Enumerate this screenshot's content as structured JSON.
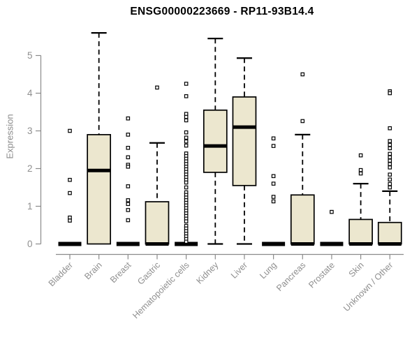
{
  "header": {
    "title": "ENSG00000223669 - RP11-93B14.4"
  },
  "chart_data": {
    "type": "boxplot",
    "title": "ENSG00000223669 - RP11-93B14.4",
    "xlabel": "",
    "ylabel": "Expression",
    "ylim": [
      0,
      5.7
    ],
    "yticks": [
      0,
      1,
      2,
      3,
      4,
      5
    ],
    "grid": false,
    "legend": "none",
    "categories": [
      "Bladder",
      "Brain",
      "Breast",
      "Gastric",
      "Hematopoietic cells",
      "Kidney",
      "Liver",
      "Lung",
      "Pancreas",
      "Prostate",
      "Skin",
      "Unknown / Other"
    ],
    "series": [
      {
        "name": "Bladder",
        "q1": 0,
        "median": 0,
        "q3": 0,
        "whisker_low": 0,
        "whisker_high": 0,
        "outliers": [
          3.0,
          1.7,
          1.35,
          0.7,
          0.62
        ]
      },
      {
        "name": "Brain",
        "q1": 0,
        "median": 1.95,
        "q3": 2.9,
        "whisker_low": 0,
        "whisker_high": 5.6,
        "outliers": []
      },
      {
        "name": "Breast",
        "q1": 0,
        "median": 0,
        "q3": 0,
        "whisker_low": 0,
        "whisker_high": 0,
        "outliers": [
          3.33,
          2.9,
          2.55,
          2.3,
          2.1,
          2.05,
          1.53,
          1.16,
          1.06,
          0.9,
          0.63
        ]
      },
      {
        "name": "Gastric",
        "q1": 0,
        "median": 0,
        "q3": 1.12,
        "whisker_low": 0,
        "whisker_high": 2.68,
        "outliers": [
          4.15
        ]
      },
      {
        "name": "Hematopoietic cells",
        "q1": 0,
        "median": 0,
        "q3": 0,
        "whisker_low": 0,
        "whisker_high": 0,
        "outliers": [
          4.25,
          3.92,
          3.45,
          3.37,
          3.28,
          2.96,
          2.82,
          2.72,
          2.61,
          2.4,
          2.33,
          2.26,
          2.19,
          2.12,
          2.05,
          1.98,
          1.91,
          1.84,
          1.77,
          1.7,
          1.63,
          1.5,
          1.37,
          1.3,
          1.23,
          1.16,
          1.09,
          1.02,
          0.95,
          0.88,
          0.81,
          0.74,
          0.67,
          0.6,
          0.48,
          0.41,
          0.34,
          0.27,
          0.2,
          0.13,
          0.06
        ]
      },
      {
        "name": "Kidney",
        "q1": 1.9,
        "median": 2.6,
        "q3": 3.55,
        "whisker_low": 0,
        "whisker_high": 5.45,
        "outliers": []
      },
      {
        "name": "Liver",
        "q1": 1.55,
        "median": 3.1,
        "q3": 3.9,
        "whisker_low": 0,
        "whisker_high": 4.93,
        "outliers": []
      },
      {
        "name": "Lung",
        "q1": 0,
        "median": 0,
        "q3": 0,
        "whisker_low": 0,
        "whisker_high": 0,
        "outliers": [
          2.8,
          2.6,
          1.8,
          1.6,
          1.25,
          1.13
        ]
      },
      {
        "name": "Pancreas",
        "q1": 0,
        "median": 0,
        "q3": 1.3,
        "whisker_low": 0,
        "whisker_high": 2.9,
        "outliers": [
          4.5,
          3.26
        ]
      },
      {
        "name": "Prostate",
        "q1": 0,
        "median": 0,
        "q3": 0,
        "whisker_low": 0,
        "whisker_high": 0,
        "outliers": [
          0.85
        ]
      },
      {
        "name": "Skin",
        "q1": 0,
        "median": 0,
        "q3": 0.65,
        "whisker_low": 0,
        "whisker_high": 1.6,
        "outliers": [
          2.35,
          1.96,
          1.87
        ]
      },
      {
        "name": "Unknown / Other",
        "q1": 0,
        "median": 0,
        "q3": 0.57,
        "whisker_low": 0,
        "whisker_high": 1.4,
        "outliers": [
          4.05,
          4.0,
          3.07,
          2.73,
          2.63,
          2.54,
          2.39,
          2.3,
          2.21,
          2.12,
          2.03,
          1.84,
          1.71,
          1.59,
          1.5
        ]
      }
    ],
    "colors": {
      "box_fill": "#ece7cf",
      "box_stroke": "#000000",
      "median": "#000000",
      "outlier_stroke": "#000000",
      "outlier_fill": "#ffffff",
      "axis": "#8a8a8a",
      "tick_label": "#8f8f8f",
      "title": "#000000",
      "background": "#ffffff"
    }
  }
}
